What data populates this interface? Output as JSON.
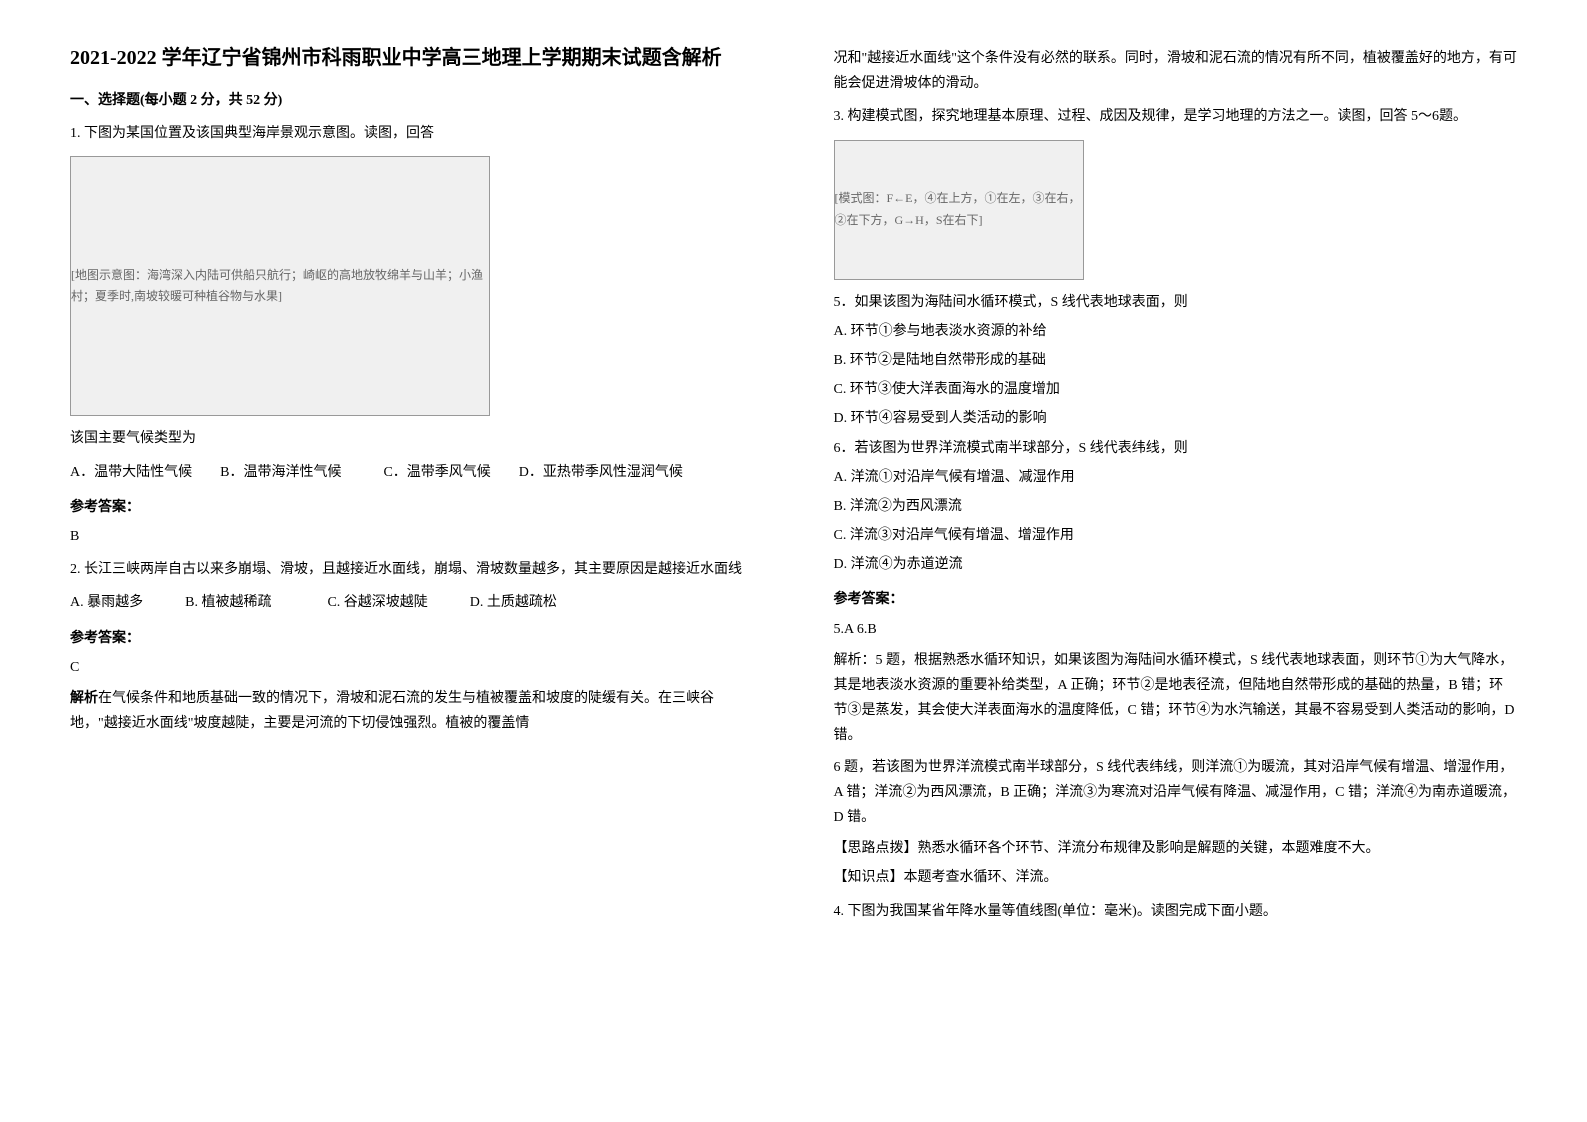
{
  "title": "2021-2022 学年辽宁省锦州市科雨职业中学高三地理上学期期末试题含解析",
  "section1": "一、选择题(每小题 2 分，共 52 分)",
  "q1": {
    "stem": "1. 下图为某国位置及该国典型海岸景观示意图。读图，回答",
    "img_alt": "[地图示意图：海湾深入内陆可供船只航行；崎岖的高地放牧绵羊与山羊；小渔村；夏季时,南坡较暖可种植谷物与水果]",
    "sub": "该国主要气候类型为",
    "options": "A．温带大陆性气候　　B．温带海洋性气候　　　C．温带季风气候　　D．亚热带季风性湿润气候",
    "ans_label": "参考答案：",
    "ans": "B"
  },
  "q2": {
    "stem": "2. 长江三峡两岸自古以来多崩塌、滑坡，且越接近水面线，崩塌、滑坡数量越多，其主要原因是越接近水面线",
    "options": "A. 暴雨越多　　　B. 植被越稀疏　　　　C. 谷越深坡越陡　　　D. 土质越疏松",
    "ans_label": "参考答案：",
    "ans": "C",
    "explain_label": "解析",
    "explain": "在气候条件和地质基础一致的情况下，滑坡和泥石流的发生与植被覆盖和坡度的陡缓有关。在三峡谷地，\"越接近水面线\"坡度越陡，主要是河流的下切侵蚀强烈。植被的覆盖情",
    "explain_cont": "况和\"越接近水面线\"这个条件没有必然的联系。同时，滑坡和泥石流的情况有所不同，植被覆盖好的地方，有可能会促进滑坡体的滑动。"
  },
  "q3": {
    "stem": "3. 构建模式图，探究地理基本原理、过程、成因及规律，是学习地理的方法之一。读图，回答 5～6题。",
    "img_alt": "[模式图：F←E，④在上方，①在左，③在右，②在下方，G→H，S在右下]",
    "q5": "5．如果该图为海陆间水循环模式，S 线代表地球表面，则",
    "q5a": "A. 环节①参与地表淡水资源的补给",
    "q5b": "B. 环节②是陆地自然带形成的基础",
    "q5c": "C. 环节③使大洋表面海水的温度增加",
    "q5d": "D. 环节④容易受到人类活动的影响",
    "q6": "6．若该图为世界洋流模式南半球部分，S 线代表纬线，则",
    "q6a": "A. 洋流①对沿岸气候有增温、减湿作用",
    "q6b": "B. 洋流②为西风漂流",
    "q6c": "C. 洋流③对沿岸气候有增温、增湿作用",
    "q6d": "D. 洋流④为赤道逆流",
    "ans_label": "参考答案：",
    "ans": "5.A  6.B",
    "explain1": "解析：5 题，根据熟悉水循环知识，如果该图为海陆间水循环模式，S 线代表地球表面，则环节①为大气降水，其是地表淡水资源的重要补给类型，A 正确；环节②是地表径流，但陆地自然带形成的基础的热量，B 错；环节③是蒸发，其会使大洋表面海水的温度降低，C 错；环节④为水汽输送，其最不容易受到人类活动的影响，D 错。",
    "explain2": "6 题，若该图为世界洋流模式南半球部分，S 线代表纬线，则洋流①为暖流，其对沿岸气候有增温、增湿作用，A 错；洋流②为西风漂流，B 正确；洋流③为寒流对沿岸气候有降温、减湿作用，C 错；洋流④为南赤道暖流，D 错。",
    "tip": "【思路点拨】熟悉水循环各个环节、洋流分布规律及影响是解题的关键，本题难度不大。",
    "knowledge": "【知识点】本题考查水循环、洋流。"
  },
  "q4": {
    "stem": "4. 下图为我国某省年降水量等值线图(单位：毫米)。读图完成下面小题。"
  }
}
